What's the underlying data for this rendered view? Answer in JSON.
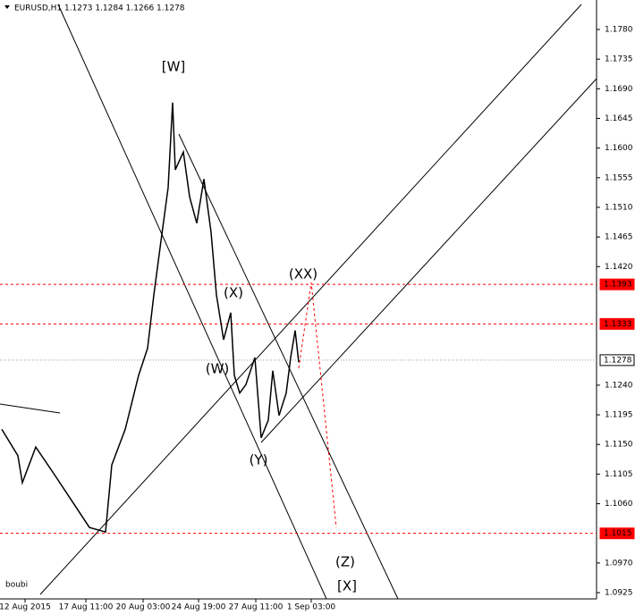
{
  "chart_data": {
    "type": "line",
    "title": "EURUSD,H1  1.1273 1.1284 1.1266 1.1278",
    "author": "boubi",
    "x": [
      1,
      10,
      12.5,
      20,
      30,
      40,
      50,
      59,
      62.5,
      70,
      77.5,
      82.5,
      86,
      90,
      94,
      96.5,
      98,
      102.5,
      106,
      110,
      114,
      118,
      121,
      125,
      129,
      131,
      134,
      137.5,
      142.5,
      146,
      150,
      152.5,
      156,
      160,
      162.5,
      165,
      167
    ],
    "series": [
      {
        "name": "EURUSD",
        "color": "#000000",
        "values": [
          1.1173,
          1.1133,
          1.1092,
          1.1146,
          1.1106,
          1.1065,
          1.1024,
          1.1017,
          1.1119,
          1.1173,
          1.1255,
          1.1296,
          1.1377,
          1.1459,
          1.154,
          1.1669,
          1.1567,
          1.1594,
          1.1526,
          1.1486,
          1.1553,
          1.1472,
          1.1377,
          1.1309,
          1.135,
          1.1255,
          1.1228,
          1.1241,
          1.1282,
          1.116,
          1.1187,
          1.1262,
          1.1194,
          1.1228,
          1.1282,
          1.1323,
          1.1275
        ]
      }
    ],
    "xlim": [
      0,
      333.5
    ],
    "ylim": [
      1.09155,
      1.18248
    ],
    "xticks": [
      {
        "value": 14,
        "label": "12 Aug 2015"
      },
      {
        "value": 48,
        "label": "17 Aug 11:00"
      },
      {
        "value": 80,
        "label": "20 Aug 03:00"
      },
      {
        "value": 111,
        "label": "24 Aug 19:00"
      },
      {
        "value": 143,
        "label": "27 Aug 11:00"
      },
      {
        "value": 174,
        "label": "1 Sep 03:00"
      }
    ],
    "yticks": [
      {
        "value": 1.178,
        "label": "1.1780"
      },
      {
        "value": 1.1735,
        "label": "1.1735"
      },
      {
        "value": 1.169,
        "label": "1.1690"
      },
      1.1645,
      {
        "value": 1.16,
        "label": "1.1600"
      },
      1.1555,
      {
        "value": 1.151,
        "label": "1.1510"
      },
      1.1465,
      {
        "value": 1.142,
        "label": "1.1420"
      },
      {
        "value": 1.124,
        "label": "1.1240"
      },
      1.1195,
      {
        "value": 1.115,
        "label": "1.1150"
      },
      1.1105,
      {
        "value": 1.106,
        "label": "1.1060"
      },
      {
        "value": 1.097,
        "label": "1.0970"
      },
      1.0925
    ],
    "levels": [
      {
        "value": 1.1393,
        "color": "#ff0000"
      },
      {
        "value": 1.1333,
        "color": "#ff0000"
      },
      {
        "value": 1.1278,
        "color": "#999999"
      },
      {
        "value": 1.1015,
        "color": "#ff0000"
      }
    ],
    "wave_labels": [
      {
        "text": "[W]",
        "color": "#ff0000"
      },
      {
        "text": "(XX)",
        "color": "#1a8a1a"
      },
      {
        "text": "(X)",
        "color": "#1a8a1a"
      },
      {
        "text": "(W)",
        "color": "#1a8a1a"
      },
      {
        "text": "(Y)",
        "color": "#1a8a1a"
      },
      {
        "text": "(Z)",
        "color": "#1a8a1a"
      },
      {
        "text": "[X]",
        "color": "#ff0000"
      }
    ]
  }
}
